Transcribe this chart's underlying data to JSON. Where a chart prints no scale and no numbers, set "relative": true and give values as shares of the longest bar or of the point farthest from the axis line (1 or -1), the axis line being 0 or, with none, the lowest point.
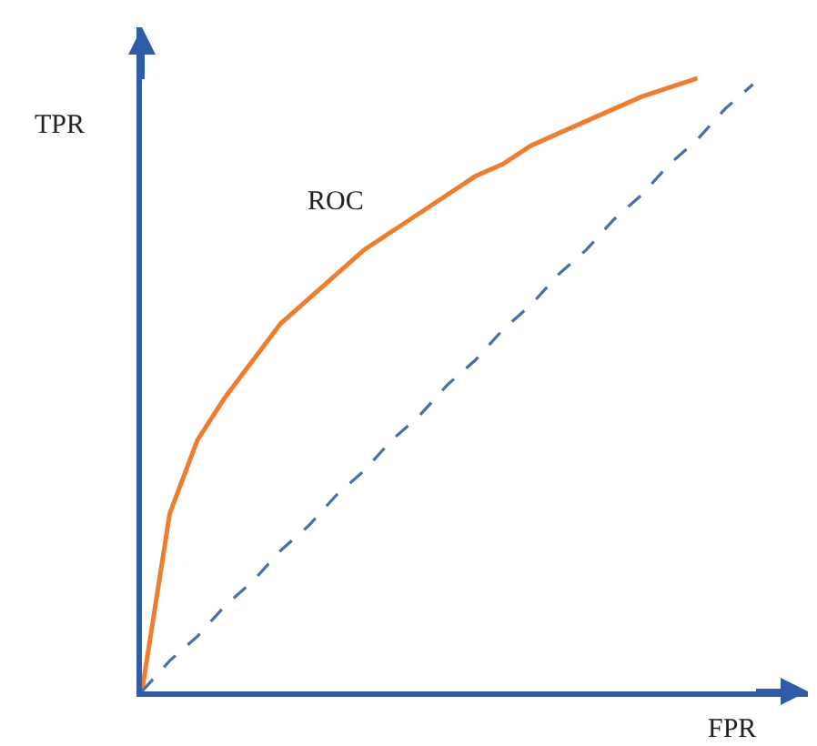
{
  "chart_data": {
    "type": "line",
    "relative": true,
    "xlabel": "FPR",
    "ylabel": "TPR",
    "categories": [
      null,
      null,
      null,
      null,
      null,
      null,
      null,
      null,
      null,
      null,
      null,
      null,
      null,
      null,
      null,
      null,
      null,
      null,
      null,
      null,
      null,
      null,
      null
    ],
    "series": [
      {
        "name": "ROC",
        "color": "#ed7d31",
        "line_style": "solid",
        "values": [
          0,
          0.29,
          0.41,
          0.48,
          0.54,
          0.6,
          0.64,
          0.68,
          0.72,
          0.75,
          0.78,
          0.81,
          0.84,
          0.86,
          0.89,
          0.91,
          0.93,
          0.95,
          0.97,
          0.985,
          1,
          null,
          null
        ]
      },
      {
        "color": "#4a6fa5",
        "line_style": "dashed",
        "values": [
          0,
          0.05,
          0.09,
          0.14,
          0.18,
          0.23,
          0.27,
          0.32,
          0.36,
          0.41,
          0.45,
          0.5,
          0.54,
          0.59,
          0.63,
          0.68,
          0.72,
          0.77,
          0.81,
          0.86,
          0.9,
          0.95,
          0.99
        ]
      }
    ],
    "legend": false,
    "marker": "none"
  }
}
